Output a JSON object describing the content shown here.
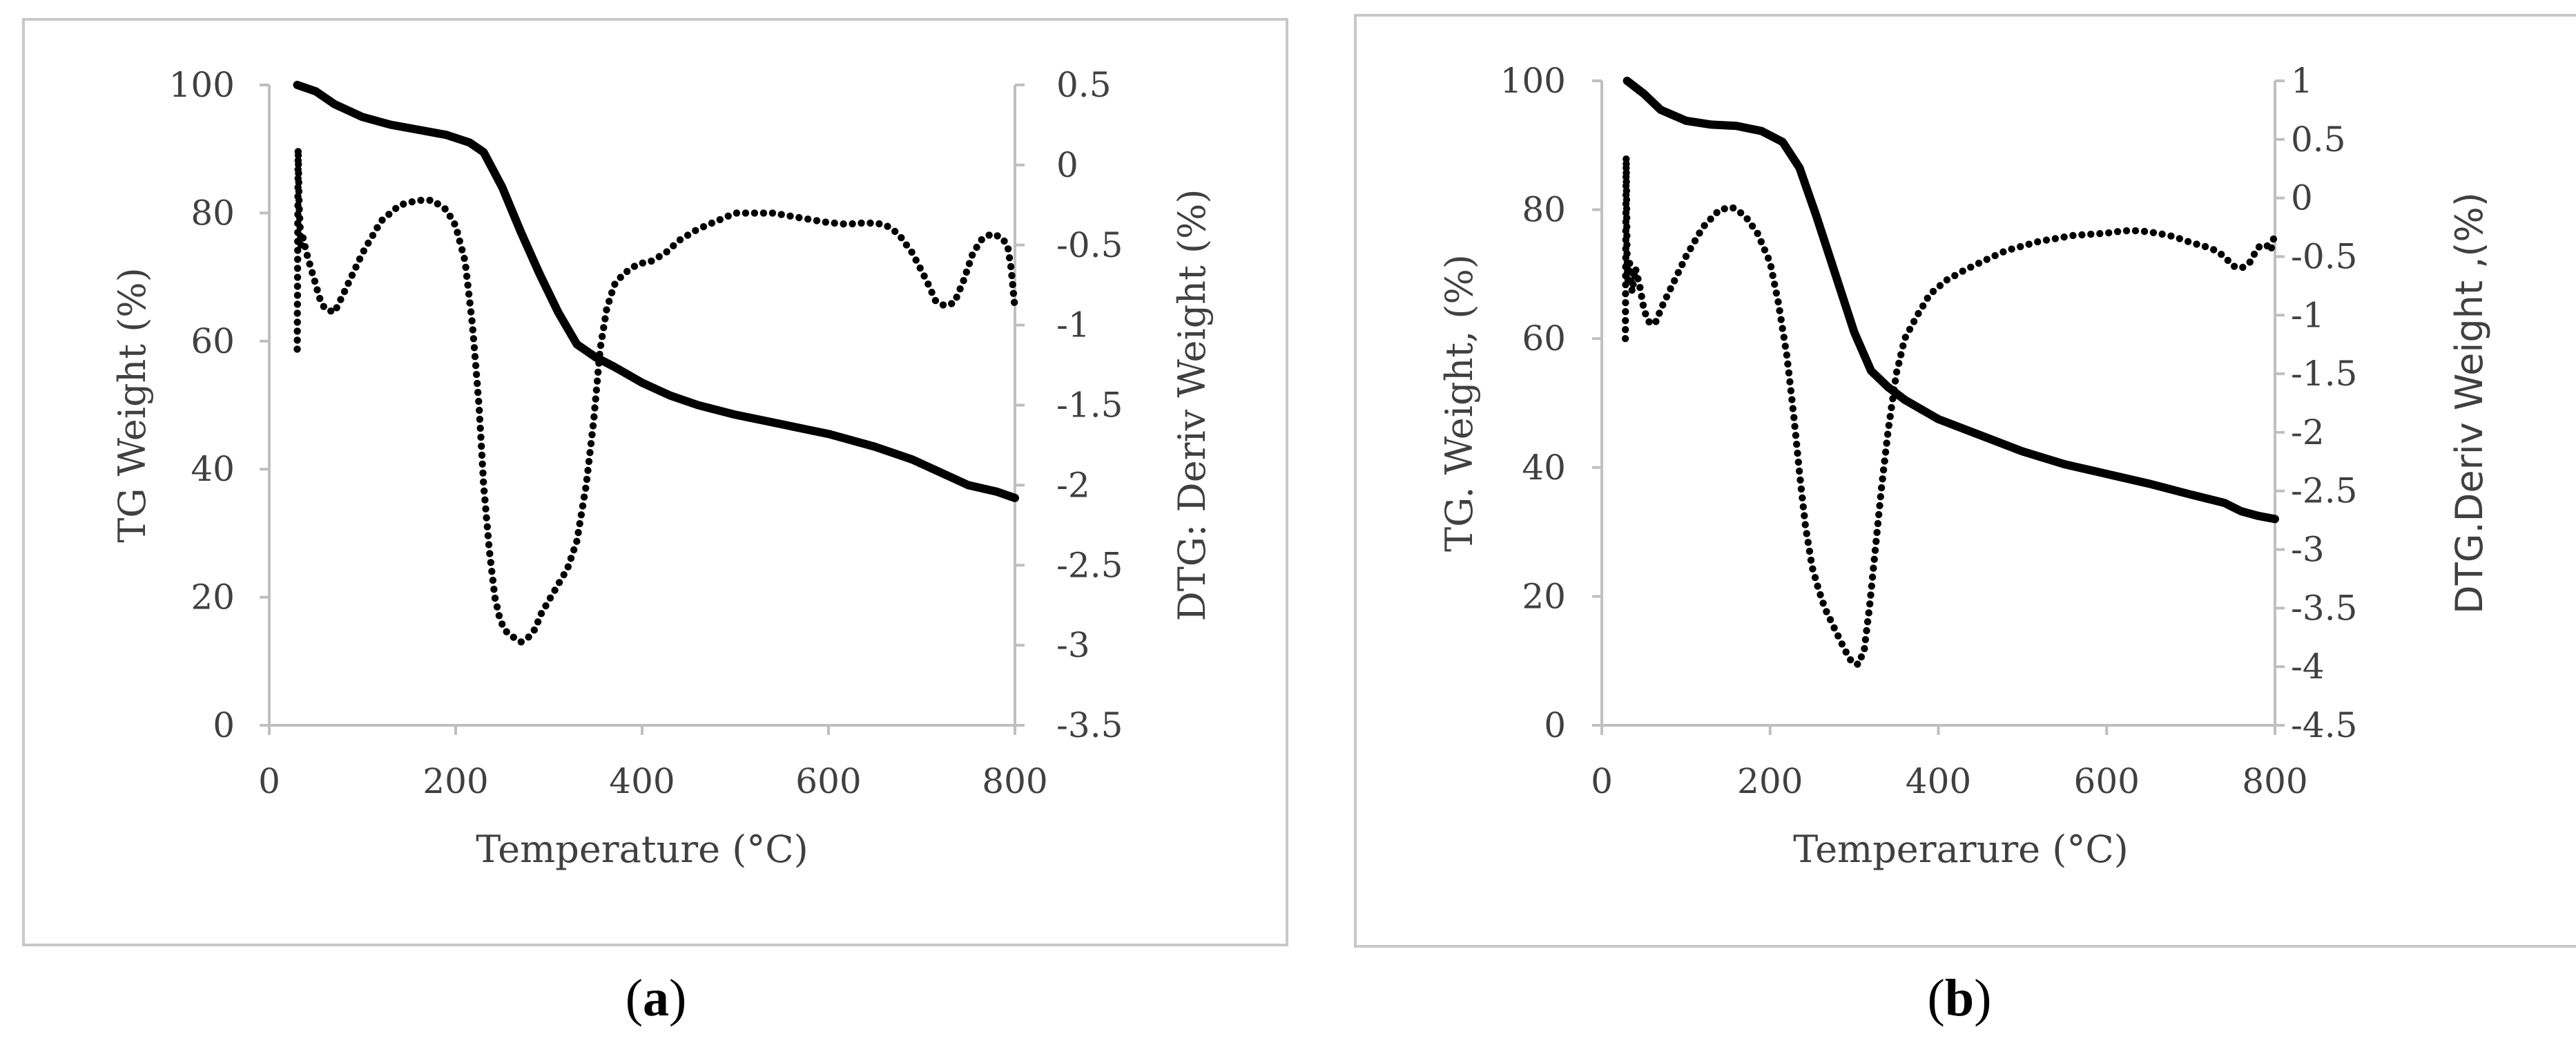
{
  "chart_data": [
    {
      "type": "line",
      "panel_label": "a",
      "xlabel": "Temperature (°C)",
      "ylabel_left": "TG Weight (%)",
      "ylabel_right": "DTG: Deriv Weight (%)",
      "xlim": [
        0,
        800
      ],
      "ylim_left": [
        0,
        100
      ],
      "ylim_right": [
        -3.5,
        0.5
      ],
      "x_ticks": [
        "0",
        "200",
        "400",
        "600",
        "800"
      ],
      "y_left_ticks": [
        "0",
        "20",
        "40",
        "60",
        "80",
        "100"
      ],
      "y_right_ticks": [
        "-3.5",
        "-3",
        "-2.5",
        "-2",
        "-1.5",
        "-1",
        "-0.5",
        "0",
        "0.5"
      ],
      "series": [
        {
          "name": "TG Weight",
          "axis": "left",
          "style": "solid",
          "x": [
            30,
            50,
            70,
            100,
            130,
            160,
            190,
            215,
            230,
            250,
            270,
            290,
            310,
            330,
            350,
            370,
            400,
            430,
            460,
            500,
            550,
            600,
            650,
            690,
            720,
            750,
            780,
            800
          ],
          "y": [
            100,
            99,
            97,
            95,
            93.8,
            93,
            92.2,
            91,
            89.5,
            84,
            77,
            70.5,
            64.5,
            59.5,
            57.5,
            56,
            53.5,
            51.5,
            50,
            48.5,
            47,
            45.5,
            43.5,
            41.5,
            39.5,
            37.5,
            36.5,
            35.5
          ]
        },
        {
          "name": "DTG Deriv Weight",
          "axis": "right",
          "style": "dotted",
          "x": [
            30,
            31,
            32,
            34,
            36,
            40,
            45,
            50,
            55,
            60,
            70,
            80,
            100,
            120,
            140,
            160,
            175,
            190,
            200,
            210,
            218,
            225,
            230,
            236,
            242,
            248,
            255,
            262,
            270,
            278,
            285,
            292,
            300,
            310,
            320,
            330,
            340,
            348,
            355,
            362,
            370,
            380,
            395,
            410,
            425,
            440,
            460,
            480,
            500,
            520,
            540,
            560,
            580,
            600,
            620,
            640,
            660,
            675,
            690,
            705,
            715,
            725,
            735,
            745,
            755,
            765,
            775,
            785,
            792,
            796,
            800
          ],
          "y": [
            -1.15,
            0.1,
            -0.25,
            -0.5,
            -0.45,
            -0.55,
            -0.65,
            -0.75,
            -0.85,
            -0.9,
            -0.92,
            -0.8,
            -0.55,
            -0.35,
            -0.25,
            -0.22,
            -0.22,
            -0.28,
            -0.38,
            -0.6,
            -1.0,
            -1.5,
            -2.0,
            -2.4,
            -2.7,
            -2.85,
            -2.92,
            -2.95,
            -2.98,
            -2.95,
            -2.9,
            -2.8,
            -2.72,
            -2.62,
            -2.52,
            -2.35,
            -2.0,
            -1.6,
            -1.15,
            -0.9,
            -0.75,
            -0.68,
            -0.62,
            -0.6,
            -0.55,
            -0.47,
            -0.4,
            -0.35,
            -0.3,
            -0.3,
            -0.3,
            -0.32,
            -0.34,
            -0.36,
            -0.37,
            -0.36,
            -0.37,
            -0.43,
            -0.55,
            -0.72,
            -0.85,
            -0.88,
            -0.86,
            -0.72,
            -0.55,
            -0.46,
            -0.43,
            -0.45,
            -0.5,
            -0.65,
            -0.9
          ]
        }
      ]
    },
    {
      "type": "line",
      "panel_label": "b",
      "xlabel": "Temperarure (°C)",
      "ylabel_left": "TG. Weight, (%)",
      "ylabel_right": "DTG.Deriv Weight ,(%)",
      "xlim": [
        0,
        800
      ],
      "ylim_left": [
        0,
        100
      ],
      "ylim_right": [
        -4.5,
        1
      ],
      "x_ticks": [
        "0",
        "200",
        "400",
        "600",
        "800"
      ],
      "y_left_ticks": [
        "0",
        "20",
        "40",
        "60",
        "80",
        "100"
      ],
      "y_right_ticks": [
        "-4.5",
        "-4",
        "-3.5",
        "-3",
        "-2.5",
        "-2",
        "-1.5",
        "-1",
        "-0.5",
        "0",
        "0.5",
        "1"
      ],
      "series": [
        {
          "name": "TG Weight",
          "axis": "left",
          "style": "solid",
          "x": [
            30,
            50,
            70,
            100,
            130,
            160,
            190,
            215,
            235,
            255,
            275,
            300,
            320,
            340,
            360,
            380,
            400,
            450,
            500,
            550,
            600,
            650,
            700,
            740,
            760,
            780,
            800
          ],
          "y": [
            100,
            98,
            95.5,
            93.8,
            93.2,
            93,
            92.2,
            90.5,
            86.5,
            79,
            71,
            61,
            55,
            52.5,
            50.5,
            49,
            47.5,
            45,
            42.5,
            40.5,
            39,
            37.5,
            35.8,
            34.5,
            33.2,
            32.5,
            32
          ]
        },
        {
          "name": "DTG Deriv Weight",
          "axis": "right",
          "style": "dotted",
          "x": [
            28,
            29,
            30,
            31,
            33,
            36,
            40,
            45,
            50,
            55,
            60,
            65,
            70,
            80,
            100,
            120,
            140,
            155,
            170,
            185,
            200,
            210,
            220,
            228,
            235,
            242,
            250,
            258,
            265,
            275,
            285,
            292,
            298,
            305,
            312,
            318,
            325,
            332,
            340,
            350,
            360,
            375,
            390,
            410,
            430,
            450,
            480,
            520,
            560,
            600,
            620,
            640,
            660,
            680,
            700,
            720,
            730,
            740,
            750,
            760,
            770,
            780,
            790,
            795,
            800
          ],
          "y": [
            -1.2,
            0.35,
            -0.5,
            -0.7,
            -0.55,
            -0.8,
            -0.6,
            -0.75,
            -0.95,
            -1.05,
            -1.08,
            -1.05,
            -0.95,
            -0.8,
            -0.5,
            -0.25,
            -0.1,
            -0.08,
            -0.15,
            -0.3,
            -0.55,
            -0.9,
            -1.35,
            -1.85,
            -2.35,
            -2.8,
            -3.15,
            -3.35,
            -3.5,
            -3.65,
            -3.8,
            -3.9,
            -3.97,
            -3.98,
            -3.85,
            -3.5,
            -3.0,
            -2.5,
            -2.0,
            -1.5,
            -1.2,
            -1.0,
            -0.82,
            -0.7,
            -0.62,
            -0.55,
            -0.45,
            -0.37,
            -0.32,
            -0.3,
            -0.28,
            -0.28,
            -0.3,
            -0.33,
            -0.38,
            -0.42,
            -0.45,
            -0.5,
            -0.58,
            -0.6,
            -0.55,
            -0.42,
            -0.4,
            -0.45,
            -0.3
          ]
        }
      ]
    }
  ]
}
